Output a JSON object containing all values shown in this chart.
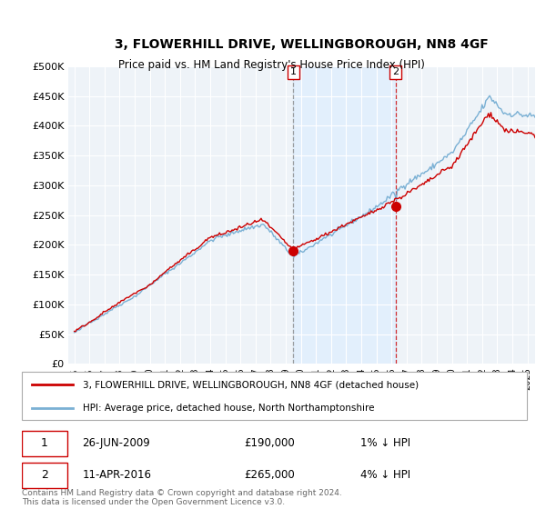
{
  "title": "3, FLOWERHILL DRIVE, WELLINGBOROUGH, NN8 4GF",
  "subtitle": "Price paid vs. HM Land Registry's House Price Index (HPI)",
  "legend_line1": "3, FLOWERHILL DRIVE, WELLINGBOROUGH, NN8 4GF (detached house)",
  "legend_line2": "HPI: Average price, detached house, North Northamptonshire",
  "footnote": "Contains HM Land Registry data © Crown copyright and database right 2024.\nThis data is licensed under the Open Government Licence v3.0.",
  "sale1_date": "26-JUN-2009",
  "sale1_price": 190000,
  "sale1_label": "1",
  "sale1_pct": "1% ↓ HPI",
  "sale2_date": "11-APR-2016",
  "sale2_price": 265000,
  "sale2_label": "2",
  "sale2_pct": "4% ↓ HPI",
  "hpi_color": "#7ab0d4",
  "price_color": "#cc0000",
  "dot_color": "#cc0000",
  "vline1_color": "#888888",
  "vline2_color": "#cc0000",
  "shade_color": "#ddeeff",
  "background_color": "#eef3f8",
  "ylim": [
    0,
    500000
  ],
  "yticks": [
    0,
    50000,
    100000,
    150000,
    200000,
    250000,
    300000,
    350000,
    400000,
    450000,
    500000
  ],
  "xlabel_years": [
    1995,
    1996,
    1997,
    1998,
    1999,
    2000,
    2001,
    2002,
    2003,
    2004,
    2005,
    2006,
    2007,
    2008,
    2009,
    2010,
    2011,
    2012,
    2013,
    2014,
    2015,
    2016,
    2017,
    2018,
    2019,
    2020,
    2021,
    2022,
    2023,
    2024,
    2025
  ],
  "sale1_x": 2009.5,
  "sale2_x": 2016.27
}
